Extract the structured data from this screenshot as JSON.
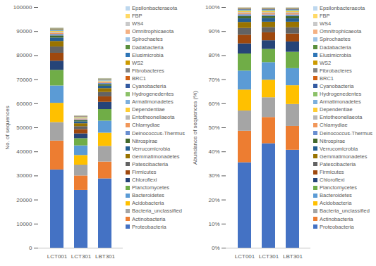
{
  "chart_data": [
    {
      "type": "bar",
      "stacked": true,
      "ylabel": "No. of sequences",
      "categories": [
        "LCT001",
        "LCT301",
        "LBT301"
      ],
      "ylim": [
        0,
        100000
      ],
      "yticks": [
        0,
        10000,
        20000,
        30000,
        40000,
        50000,
        60000,
        70000,
        80000,
        90000,
        100000
      ],
      "grid": false,
      "legend": "right",
      "series": [
        {
          "name": "Proteobacteria",
          "color": "#4472c4",
          "values": [
            32500,
            24000,
            28800
          ]
        },
        {
          "name": "Actinobacteria",
          "color": "#ed7d31",
          "values": [
            12000,
            6000,
            7000
          ]
        },
        {
          "name": "Bacteria_unclassified",
          "color": "#a5a5a5",
          "values": [
            7700,
            4500,
            6500
          ]
        },
        {
          "name": "Acidobacteria",
          "color": "#ffc000",
          "values": [
            8000,
            4000,
            5500
          ]
        },
        {
          "name": "Bacteroidetes",
          "color": "#5b9bd5",
          "values": [
            7200,
            4000,
            5000
          ]
        },
        {
          "name": "Planctomycetes",
          "color": "#70ad47",
          "values": [
            6500,
            3000,
            4800
          ]
        },
        {
          "name": "Chloroflexi",
          "color": "#264478",
          "values": [
            3800,
            2000,
            3000
          ]
        },
        {
          "name": "Firmicutes",
          "color": "#9e480e",
          "values": [
            3300,
            1800,
            2300
          ]
        },
        {
          "name": "Patescibacteria",
          "color": "#636363",
          "values": [
            2600,
            1200,
            1800
          ]
        },
        {
          "name": "Gemmatimonadetes",
          "color": "#997300",
          "values": [
            2300,
            1200,
            1600
          ]
        },
        {
          "name": "Verrucomicrobia",
          "color": "#255e91",
          "values": [
            1400,
            800,
            1000
          ]
        },
        {
          "name": "Nitrospirae",
          "color": "#43682b",
          "values": [
            900,
            500,
            700
          ]
        },
        {
          "name": "Deinococcus-Thermus",
          "color": "#698ed0",
          "values": [
            600,
            350,
            450
          ]
        },
        {
          "name": "Chlamydiae",
          "color": "#f1975a",
          "values": [
            500,
            300,
            380
          ]
        },
        {
          "name": "Entotheonellaeota",
          "color": "#b7b7b7",
          "values": [
            400,
            250,
            320
          ]
        },
        {
          "name": "Dependentiae",
          "color": "#ffcd33",
          "values": [
            350,
            200,
            260
          ]
        },
        {
          "name": "Armatimonadetes",
          "color": "#7cafdd",
          "values": [
            300,
            180,
            220
          ]
        },
        {
          "name": "Hydrogenedentes",
          "color": "#8cc168",
          "values": [
            250,
            150,
            180
          ]
        },
        {
          "name": "Cyanobacteria",
          "color": "#335aa1",
          "values": [
            200,
            120,
            150
          ]
        },
        {
          "name": "BRC1",
          "color": "#d26012",
          "values": [
            150,
            100,
            120
          ]
        },
        {
          "name": "Fibrobacteres",
          "color": "#848484",
          "values": [
            120,
            80,
            90
          ]
        },
        {
          "name": "WS2",
          "color": "#cc9a00",
          "values": [
            100,
            60,
            75
          ]
        },
        {
          "name": "Elusimicrobia",
          "color": "#2e75b6",
          "values": [
            80,
            50,
            60
          ]
        },
        {
          "name": "Dadabacteria",
          "color": "#5a8f3c",
          "values": [
            70,
            40,
            50
          ]
        },
        {
          "name": "Spirochaetes",
          "color": "#9dc3e6",
          "values": [
            60,
            35,
            40
          ]
        },
        {
          "name": "Omnitrophicaeota",
          "color": "#f4b183",
          "values": [
            50,
            30,
            35
          ]
        },
        {
          "name": "WS4",
          "color": "#c9c9c9",
          "values": [
            40,
            20,
            25
          ]
        },
        {
          "name": "FBP",
          "color": "#ffd966",
          "values": [
            30,
            15,
            20
          ]
        },
        {
          "name": "Epsilonbacteraeota",
          "color": "#bdd7ee",
          "values": [
            20,
            10,
            15
          ]
        }
      ]
    },
    {
      "type": "bar",
      "stacked": true,
      "ylabel": "Abundance of sequences (%)",
      "categories": [
        "LCT001",
        "LCT301",
        "LBT301"
      ],
      "ylim": [
        0,
        100
      ],
      "yticks": [
        {
          "value": 0,
          "label": "0%"
        },
        {
          "value": 10,
          "label": "10%"
        },
        {
          "value": 20,
          "label": "20%"
        },
        {
          "value": 30,
          "label": "30%"
        },
        {
          "value": 40,
          "label": "40%"
        },
        {
          "value": 50,
          "label": "50%"
        },
        {
          "value": 60,
          "label": "60%"
        },
        {
          "value": 70,
          "label": "70%"
        },
        {
          "value": 80,
          "label": "80%"
        },
        {
          "value": 90,
          "label": "90%"
        },
        {
          "value": 100,
          "label": "100%"
        }
      ],
      "grid": false,
      "legend": "right",
      "series": [
        {
          "name": "Proteobacteria",
          "color": "#4472c4",
          "values": [
            35.5,
            43.4,
            40.7
          ]
        },
        {
          "name": "Actinobacteria",
          "color": "#ed7d31",
          "values": [
            13.1,
            10.9,
            9.9
          ]
        },
        {
          "name": "Bacteria_unclassified",
          "color": "#a5a5a5",
          "values": [
            8.4,
            8.2,
            9.1
          ]
        },
        {
          "name": "Acidobacteria",
          "color": "#ffc000",
          "values": [
            8.7,
            7.3,
            7.8
          ]
        },
        {
          "name": "Bacteroidetes",
          "color": "#5b9bd5",
          "values": [
            7.9,
            7.3,
            7.1
          ]
        },
        {
          "name": "Planctomycetes",
          "color": "#70ad47",
          "values": [
            7.1,
            5.5,
            6.8
          ]
        },
        {
          "name": "Chloroflexi",
          "color": "#264478",
          "values": [
            4.2,
            3.6,
            4.3
          ]
        },
        {
          "name": "Firmicutes",
          "color": "#9e480e",
          "values": [
            3.6,
            3.3,
            3.3
          ]
        },
        {
          "name": "Patescibacteria",
          "color": "#636363",
          "values": [
            2.8,
            2.2,
            2.6
          ]
        },
        {
          "name": "Gemmatimonadetes",
          "color": "#997300",
          "values": [
            2.5,
            2.2,
            2.3
          ]
        },
        {
          "name": "Verrucomicrobia",
          "color": "#255e91",
          "values": [
            1.5,
            1.5,
            1.4
          ]
        },
        {
          "name": "Nitrospirae",
          "color": "#43682b",
          "values": [
            1.0,
            0.9,
            1.0
          ]
        },
        {
          "name": "Deinococcus-Thermus",
          "color": "#698ed0",
          "values": [
            0.7,
            0.6,
            0.6
          ]
        },
        {
          "name": "Chlamydiae",
          "color": "#f1975a",
          "values": [
            0.5,
            0.5,
            0.5
          ]
        },
        {
          "name": "Entotheonellaeota",
          "color": "#b7b7b7",
          "values": [
            0.4,
            0.5,
            0.5
          ]
        },
        {
          "name": "Dependentiae",
          "color": "#ffcd33",
          "values": [
            0.4,
            0.4,
            0.4
          ]
        },
        {
          "name": "Armatimonadetes",
          "color": "#7cafdd",
          "values": [
            0.3,
            0.3,
            0.3
          ]
        },
        {
          "name": "Hydrogenedentes",
          "color": "#8cc168",
          "values": [
            0.3,
            0.3,
            0.3
          ]
        },
        {
          "name": "Cyanobacteria",
          "color": "#335aa1",
          "values": [
            0.2,
            0.2,
            0.2
          ]
        },
        {
          "name": "BRC1",
          "color": "#d26012",
          "values": [
            0.2,
            0.2,
            0.2
          ]
        },
        {
          "name": "Fibrobacteres",
          "color": "#848484",
          "values": [
            0.1,
            0.1,
            0.1
          ]
        },
        {
          "name": "WS2",
          "color": "#cc9a00",
          "values": [
            0.1,
            0.1,
            0.1
          ]
        },
        {
          "name": "Elusimicrobia",
          "color": "#2e75b6",
          "values": [
            0.1,
            0.1,
            0.1
          ]
        },
        {
          "name": "Dadabacteria",
          "color": "#5a8f3c",
          "values": [
            0.1,
            0.1,
            0.1
          ]
        },
        {
          "name": "Spirochaetes",
          "color": "#9dc3e6",
          "values": [
            0.1,
            0.1,
            0.1
          ]
        },
        {
          "name": "Omnitrophicaeota",
          "color": "#f4b183",
          "values": [
            0.1,
            0.05,
            0.05
          ]
        },
        {
          "name": "WS4",
          "color": "#c9c9c9",
          "values": [
            0.04,
            0.04,
            0.04
          ]
        },
        {
          "name": "FBP",
          "color": "#ffd966",
          "values": [
            0.03,
            0.03,
            0.03
          ]
        },
        {
          "name": "Epsilonbacteraeota",
          "color": "#bdd7ee",
          "values": [
            0.02,
            0.02,
            0.02
          ]
        }
      ]
    }
  ]
}
